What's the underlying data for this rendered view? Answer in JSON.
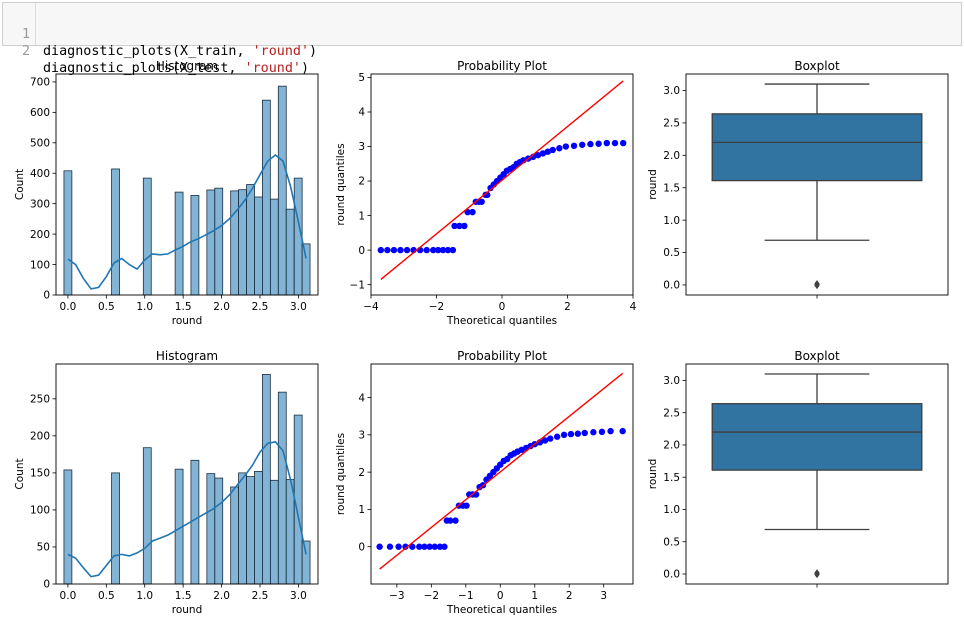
{
  "code_cell": {
    "lines": [
      {
        "number": "1",
        "parts": [
          {
            "t": "diagnostic_plots(X_train, ",
            "c": ""
          },
          {
            "t": "'round'",
            "c": "str"
          },
          {
            "t": ")",
            "c": ""
          }
        ]
      },
      {
        "number": "2",
        "parts": [
          {
            "t": "diagnostic_plots(X_test, ",
            "c": ""
          },
          {
            "t": "'round'",
            "c": "str"
          },
          {
            "t": ")",
            "c": ""
          }
        ]
      }
    ]
  },
  "colors": {
    "bar_fill": "#5b9bc7",
    "bar_edge": "#1a2f40",
    "kde": "#1f77b4",
    "box_fill": "#3274a1",
    "qq_points": "#0000ff",
    "qq_line": "#ff0000"
  },
  "chart_data": [
    {
      "type": "bar",
      "title": "Histogram",
      "xlabel": "round",
      "ylabel": "Count",
      "xlim": [
        -0.155,
        3.255
      ],
      "ylim": [
        0,
        726
      ],
      "xticks": [
        0.0,
        0.5,
        1.0,
        1.5,
        2.0,
        2.5,
        3.0
      ],
      "xtick_labels": [
        "0.0",
        "0.5",
        "1.0",
        "1.5",
        "2.0",
        "2.5",
        "3.0"
      ],
      "yticks": [
        0,
        100,
        200,
        300,
        400,
        500,
        600,
        700
      ],
      "ytick_labels": [
        "0",
        "100",
        "200",
        "300",
        "400",
        "500",
        "600",
        "700"
      ],
      "bin_width": 0.1033,
      "bars": [
        {
          "x": 0.0,
          "value": 408
        },
        {
          "x": 0.62,
          "value": 414
        },
        {
          "x": 1.033,
          "value": 384
        },
        {
          "x": 1.447,
          "value": 338
        },
        {
          "x": 1.653,
          "value": 327
        },
        {
          "x": 1.86,
          "value": 345
        },
        {
          "x": 1.963,
          "value": 351
        },
        {
          "x": 2.17,
          "value": 342
        },
        {
          "x": 2.273,
          "value": 346
        },
        {
          "x": 2.377,
          "value": 363
        },
        {
          "x": 2.48,
          "value": 322
        },
        {
          "x": 2.583,
          "value": 640
        },
        {
          "x": 2.687,
          "value": 315
        },
        {
          "x": 2.79,
          "value": 686
        },
        {
          "x": 2.893,
          "value": 282
        },
        {
          "x": 2.997,
          "value": 384
        },
        {
          "x": 3.1,
          "value": 168
        }
      ],
      "kde": {
        "x": [
          0.0,
          0.1,
          0.2,
          0.3,
          0.4,
          0.5,
          0.6,
          0.7,
          0.8,
          0.9,
          1.0,
          1.1,
          1.2,
          1.3,
          1.4,
          1.5,
          1.6,
          1.7,
          1.8,
          1.9,
          2.0,
          2.1,
          2.2,
          2.3,
          2.4,
          2.5,
          2.6,
          2.7,
          2.8,
          2.9,
          3.0,
          3.1
        ],
        "y": [
          118,
          100,
          55,
          20,
          25,
          60,
          105,
          120,
          100,
          85,
          115,
          135,
          132,
          135,
          148,
          160,
          175,
          185,
          198,
          212,
          228,
          250,
          278,
          310,
          350,
          395,
          440,
          460,
          440,
          355,
          240,
          120
        ]
      }
    },
    {
      "type": "scatter",
      "title": "Probability Plot",
      "xlabel": "Theoretical quantiles",
      "ylabel": "round quantiles",
      "xlim": [
        -4.0,
        4.0
      ],
      "ylim": [
        -1.3,
        5.1
      ],
      "xticks": [
        -4,
        -2,
        0,
        2,
        4
      ],
      "xtick_labels": [
        "−4",
        "−2",
        "0",
        "2",
        "4"
      ],
      "yticks": [
        -1,
        0,
        1,
        2,
        3,
        4,
        5
      ],
      "ytick_labels": [
        "−1",
        "0",
        "1",
        "2",
        "3",
        "4",
        "5"
      ],
      "fit_line": {
        "x": [
          -3.7,
          3.7
        ],
        "y": [
          -0.85,
          4.9
        ]
      },
      "points": [
        [
          -3.7,
          0
        ],
        [
          -3.5,
          0
        ],
        [
          -3.3,
          0
        ],
        [
          -3.1,
          0
        ],
        [
          -2.9,
          0
        ],
        [
          -2.7,
          0
        ],
        [
          -2.5,
          0
        ],
        [
          -2.3,
          0
        ],
        [
          -2.1,
          0
        ],
        [
          -1.95,
          0
        ],
        [
          -1.8,
          0
        ],
        [
          -1.65,
          0
        ],
        [
          -1.5,
          0
        ],
        [
          -1.45,
          0.7
        ],
        [
          -1.3,
          0.7
        ],
        [
          -1.15,
          0.7
        ],
        [
          -1.05,
          1.1
        ],
        [
          -0.9,
          1.1
        ],
        [
          -0.8,
          1.4
        ],
        [
          -0.7,
          1.4
        ],
        [
          -0.62,
          1.4
        ],
        [
          -0.5,
          1.6
        ],
        [
          -0.45,
          1.6
        ],
        [
          -0.35,
          1.8
        ],
        [
          -0.25,
          1.9
        ],
        [
          -0.15,
          2.0
        ],
        [
          -0.05,
          2.1
        ],
        [
          0.05,
          2.2
        ],
        [
          0.15,
          2.3
        ],
        [
          0.25,
          2.35
        ],
        [
          0.35,
          2.4
        ],
        [
          0.45,
          2.5
        ],
        [
          0.55,
          2.55
        ],
        [
          0.65,
          2.6
        ],
        [
          0.8,
          2.65
        ],
        [
          0.95,
          2.7
        ],
        [
          1.1,
          2.75
        ],
        [
          1.25,
          2.8
        ],
        [
          1.4,
          2.85
        ],
        [
          1.55,
          2.9
        ],
        [
          1.75,
          2.95
        ],
        [
          1.95,
          3.0
        ],
        [
          2.2,
          3.02
        ],
        [
          2.45,
          3.05
        ],
        [
          2.7,
          3.07
        ],
        [
          2.95,
          3.08
        ],
        [
          3.2,
          3.1
        ],
        [
          3.45,
          3.1
        ],
        [
          3.7,
          3.1
        ]
      ]
    },
    {
      "type": "box",
      "title": "Boxplot",
      "ylabel": "round",
      "ylim": [
        -0.155,
        3.255
      ],
      "yticks": [
        0.0,
        0.5,
        1.0,
        1.5,
        2.0,
        2.5,
        3.0
      ],
      "ytick_labels": [
        "0.0",
        "0.5",
        "1.0",
        "1.5",
        "2.0",
        "2.5",
        "3.0"
      ],
      "stats": {
        "whislo": 0.69,
        "q1": 1.61,
        "median": 2.2,
        "q3": 2.64,
        "whishi": 3.1,
        "fliers": [
          0.0,
          0.01,
          0.02,
          -0.01
        ]
      }
    },
    {
      "type": "bar",
      "title": "Histogram",
      "xlabel": "round",
      "ylabel": "Count",
      "xlim": [
        -0.155,
        3.255
      ],
      "ylim": [
        0,
        297
      ],
      "xticks": [
        0.0,
        0.5,
        1.0,
        1.5,
        2.0,
        2.5,
        3.0
      ],
      "xtick_labels": [
        "0.0",
        "0.5",
        "1.0",
        "1.5",
        "2.0",
        "2.5",
        "3.0"
      ],
      "yticks": [
        0,
        50,
        100,
        150,
        200,
        250
      ],
      "ytick_labels": [
        "0",
        "50",
        "100",
        "150",
        "200",
        "250"
      ],
      "bin_width": 0.1033,
      "bars": [
        {
          "x": 0.0,
          "value": 154
        },
        {
          "x": 0.62,
          "value": 150
        },
        {
          "x": 1.033,
          "value": 184
        },
        {
          "x": 1.447,
          "value": 155
        },
        {
          "x": 1.653,
          "value": 167
        },
        {
          "x": 1.86,
          "value": 149
        },
        {
          "x": 1.963,
          "value": 143
        },
        {
          "x": 2.17,
          "value": 131
        },
        {
          "x": 2.273,
          "value": 150
        },
        {
          "x": 2.377,
          "value": 145
        },
        {
          "x": 2.48,
          "value": 152
        },
        {
          "x": 2.583,
          "value": 283
        },
        {
          "x": 2.687,
          "value": 140
        },
        {
          "x": 2.79,
          "value": 259
        },
        {
          "x": 2.893,
          "value": 141
        },
        {
          "x": 2.997,
          "value": 228
        },
        {
          "x": 3.1,
          "value": 58
        }
      ],
      "kde": {
        "x": [
          0.0,
          0.1,
          0.2,
          0.3,
          0.4,
          0.5,
          0.6,
          0.7,
          0.8,
          0.9,
          1.0,
          1.1,
          1.2,
          1.3,
          1.4,
          1.5,
          1.6,
          1.7,
          1.8,
          1.9,
          2.0,
          2.1,
          2.2,
          2.3,
          2.4,
          2.5,
          2.6,
          2.7,
          2.8,
          2.9,
          3.0,
          3.1
        ],
        "y": [
          40,
          35,
          22,
          10,
          12,
          25,
          38,
          40,
          38,
          42,
          48,
          58,
          62,
          66,
          72,
          78,
          84,
          90,
          96,
          102,
          110,
          120,
          133,
          146,
          160,
          178,
          190,
          192,
          180,
          140,
          90,
          40
        ]
      }
    },
    {
      "type": "scatter",
      "title": "Probability Plot",
      "xlabel": "Theoretical quantiles",
      "ylabel": "round quantiles",
      "xlim": [
        -3.75,
        3.85
      ],
      "ylim": [
        -1.0,
        4.9
      ],
      "xticks": [
        -3,
        -2,
        -1,
        0,
        1,
        2,
        3
      ],
      "xtick_labels": [
        "−3",
        "−2",
        "−1",
        "0",
        "1",
        "2",
        "3"
      ],
      "yticks": [
        0,
        1,
        2,
        3,
        4
      ],
      "ytick_labels": [
        "0",
        "1",
        "2",
        "3",
        "4"
      ],
      "fit_line": {
        "x": [
          -3.5,
          3.55
        ],
        "y": [
          -0.6,
          4.65
        ]
      },
      "points": [
        [
          -3.5,
          0
        ],
        [
          -3.2,
          0
        ],
        [
          -2.95,
          0
        ],
        [
          -2.75,
          0
        ],
        [
          -2.55,
          0
        ],
        [
          -2.35,
          0
        ],
        [
          -2.2,
          0
        ],
        [
          -2.05,
          0
        ],
        [
          -1.9,
          0
        ],
        [
          -1.75,
          0
        ],
        [
          -1.62,
          0
        ],
        [
          -1.55,
          0.7
        ],
        [
          -1.45,
          0.7
        ],
        [
          -1.3,
          0.7
        ],
        [
          -1.2,
          1.1
        ],
        [
          -1.08,
          1.1
        ],
        [
          -0.98,
          1.1
        ],
        [
          -0.9,
          1.4
        ],
        [
          -0.8,
          1.4
        ],
        [
          -0.7,
          1.4
        ],
        [
          -0.6,
          1.6
        ],
        [
          -0.5,
          1.65
        ],
        [
          -0.4,
          1.8
        ],
        [
          -0.3,
          1.9
        ],
        [
          -0.2,
          2.0
        ],
        [
          -0.1,
          2.1
        ],
        [
          0.0,
          2.2
        ],
        [
          0.1,
          2.3
        ],
        [
          0.2,
          2.35
        ],
        [
          0.3,
          2.45
        ],
        [
          0.4,
          2.5
        ],
        [
          0.5,
          2.55
        ],
        [
          0.62,
          2.6
        ],
        [
          0.75,
          2.65
        ],
        [
          0.88,
          2.7
        ],
        [
          1.0,
          2.75
        ],
        [
          1.15,
          2.8
        ],
        [
          1.3,
          2.85
        ],
        [
          1.45,
          2.9
        ],
        [
          1.65,
          2.95
        ],
        [
          1.85,
          3.0
        ],
        [
          2.05,
          3.02
        ],
        [
          2.25,
          3.03
        ],
        [
          2.45,
          3.05
        ],
        [
          2.7,
          3.07
        ],
        [
          2.95,
          3.08
        ],
        [
          3.2,
          3.1
        ],
        [
          3.55,
          3.1
        ]
      ]
    },
    {
      "type": "box",
      "title": "Boxplot",
      "ylabel": "round",
      "ylim": [
        -0.155,
        3.255
      ],
      "yticks": [
        0.0,
        0.5,
        1.0,
        1.5,
        2.0,
        2.5,
        3.0
      ],
      "ytick_labels": [
        "0.0",
        "0.5",
        "1.0",
        "1.5",
        "2.0",
        "2.5",
        "3.0"
      ],
      "stats": {
        "whislo": 0.69,
        "q1": 1.61,
        "median": 2.2,
        "q3": 2.64,
        "whishi": 3.1,
        "fliers": [
          0.0,
          0.01,
          0.02,
          -0.01
        ]
      }
    }
  ]
}
